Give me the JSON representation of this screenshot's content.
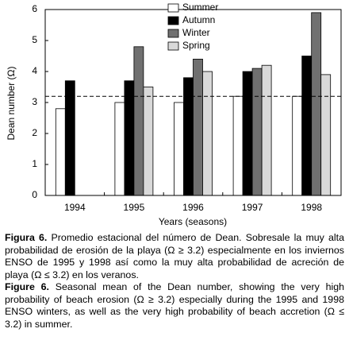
{
  "chart_data": {
    "type": "bar",
    "categories": [
      "1994",
      "1995",
      "1996",
      "1997",
      "1998"
    ],
    "series": [
      {
        "name": "Summer",
        "color": "#ffffff",
        "values": [
          2.8,
          3.0,
          3.0,
          3.2,
          3.2
        ]
      },
      {
        "name": "Autumn",
        "color": "#000000",
        "values": [
          3.7,
          3.7,
          3.8,
          4.0,
          4.5
        ]
      },
      {
        "name": "Winter",
        "color": "#707070",
        "values": [
          null,
          4.8,
          4.4,
          4.1,
          5.9
        ]
      },
      {
        "name": "Spring",
        "color": "#d9d9d9",
        "values": [
          null,
          3.5,
          4.0,
          4.2,
          3.9
        ]
      }
    ],
    "ylim": [
      0,
      6
    ],
    "yticks": [
      0,
      1,
      2,
      3,
      4,
      5,
      6
    ],
    "y_label": "Dean number (Ω)",
    "x_label": "Years (seasons)",
    "reference_line": 3.2,
    "legend": "top-center"
  },
  "caption": {
    "es": {
      "label": "Figura 6.",
      "text": "Promedio estacional del número de Dean. Sobresale la muy alta probabilidad de erosión de la playa (Ω ≥ 3.2) especialmente en los inviernos ENSO de 1995 y 1998 así como la muy alta probabilidad de acreción de playa (Ω ≤ 3.2) en los veranos."
    },
    "en": {
      "label": "Figure 6.",
      "text": "Seasonal mean of the Dean number, showing the very high probability of beach erosion (Ω ≥ 3.2) especially during the 1995 and 1998 ENSO winters, as well as the very high probability of beach accretion (Ω ≤ 3.2) in summer."
    }
  }
}
